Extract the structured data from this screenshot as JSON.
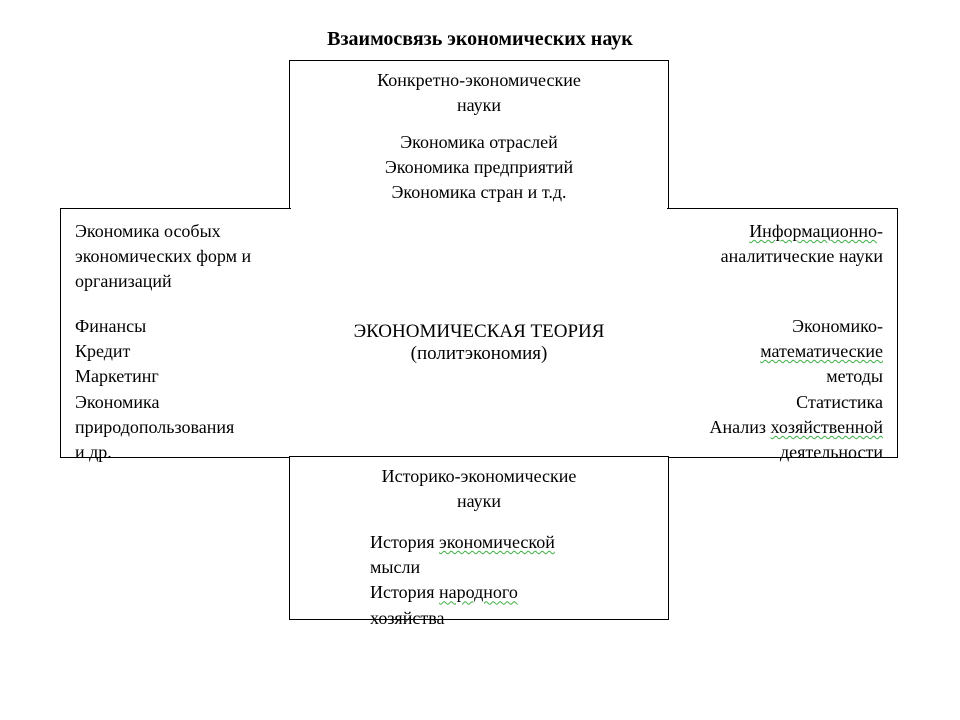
{
  "diagram": {
    "type": "flowchart",
    "title": "Взаимосвязь экономических наук",
    "colors": {
      "background": "#ffffff",
      "border": "#000000",
      "text": "#000000",
      "squiggle": "#3cb043"
    },
    "fonts": {
      "family": "Times New Roman",
      "title_size_pt": 15,
      "body_size_pt": 13.5,
      "core_size_pt": 14
    },
    "center": {
      "line1": "ЭКОНОМИЧЕСКАЯ ТЕОРИЯ",
      "line2": "(политэкономия)"
    },
    "top": {
      "header": "Конкретно-экономические\nнауки",
      "items": "Экономика отраслей\nЭкономика предприятий\nЭкономика стран и т.д."
    },
    "bottom": {
      "header": "Историко-экономические\nнауки",
      "item1_a": "История ",
      "item1_b": "экономической",
      "item2_a": "мысли",
      "item3_a": "История ",
      "item3_b": "народного",
      "item4_a": "хозяйства"
    },
    "left": {
      "header": "Экономика особых\nэкономических форм и\nорганизаций",
      "items": "Финансы\nКредит\nМаркетинг\nЭкономика\nприродопользования\nи др."
    },
    "right": {
      "header_a": "Информационно",
      "header_b": "-",
      "header_c": "аналитические науки",
      "items_a": "Экономико-",
      "items_b": "математические",
      "items_c": "методы",
      "items_d": "Статистика",
      "items_e": "Анализ ",
      "items_f": "хозяйственной",
      "items_g": "деятельности"
    }
  }
}
